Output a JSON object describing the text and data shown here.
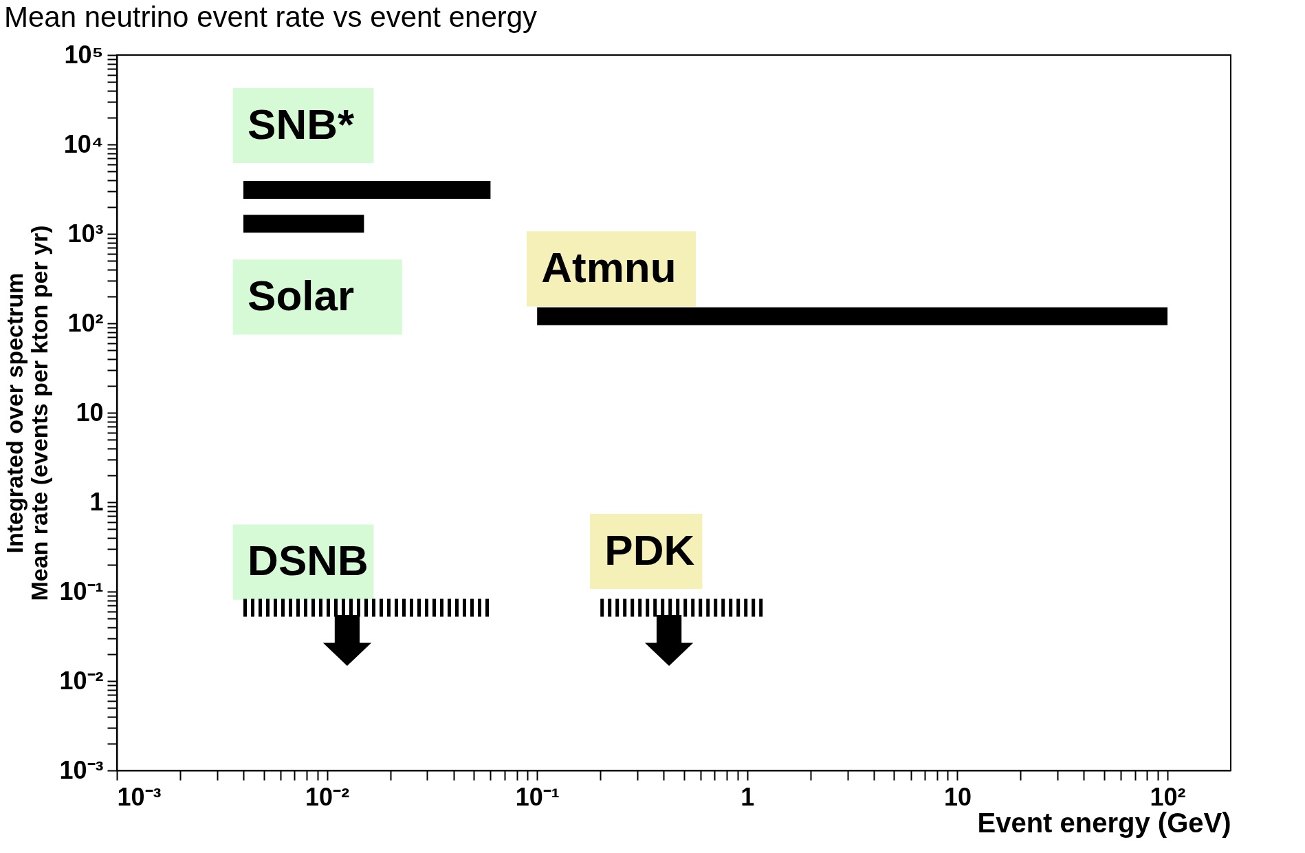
{
  "chart_data": {
    "type": "line",
    "title": "Mean neutrino event rate vs event energy",
    "xlabel": "Event energy (GeV)",
    "ylabel": "Integrated over spectrum\nMean rate (events per kton per yr)",
    "log": "xy",
    "grid": false,
    "marker": "none",
    "xlim": [
      0.001,
      200
    ],
    "ylim": [
      0.001,
      100000
    ],
    "xticks": [
      {
        "value": 0.001,
        "label": "10⁻³"
      },
      {
        "value": 0.002,
        "label": null
      },
      {
        "value": 0.003,
        "label": null
      },
      {
        "value": 0.004,
        "label": null
      },
      {
        "value": 0.005,
        "label": null
      },
      {
        "value": 0.006,
        "label": null
      },
      {
        "value": 0.007,
        "label": null
      },
      {
        "value": 0.008,
        "label": null
      },
      {
        "value": 0.009,
        "label": null
      },
      {
        "value": 0.01,
        "label": "10⁻²"
      },
      {
        "value": 0.02,
        "label": null
      },
      {
        "value": 0.03,
        "label": null
      },
      {
        "value": 0.04,
        "label": null
      },
      {
        "value": 0.05,
        "label": null
      },
      {
        "value": 0.06,
        "label": null
      },
      {
        "value": 0.07,
        "label": null
      },
      {
        "value": 0.08,
        "label": null
      },
      {
        "value": 0.09,
        "label": null
      },
      {
        "value": 0.1,
        "label": "10⁻¹"
      },
      {
        "value": 0.2,
        "label": null
      },
      {
        "value": 0.3,
        "label": null
      },
      {
        "value": 0.4,
        "label": null
      },
      {
        "value": 0.5,
        "label": null
      },
      {
        "value": 0.6,
        "label": null
      },
      {
        "value": 0.7,
        "label": null
      },
      {
        "value": 0.8,
        "label": null
      },
      {
        "value": 0.9,
        "label": null
      },
      1,
      {
        "value": 2,
        "label": null
      },
      {
        "value": 3,
        "label": null
      },
      {
        "value": 4,
        "label": null
      },
      {
        "value": 5,
        "label": null
      },
      {
        "value": 6,
        "label": null
      },
      {
        "value": 7,
        "label": null
      },
      {
        "value": 8,
        "label": null
      },
      {
        "value": 9,
        "label": null
      },
      10,
      {
        "value": 20,
        "label": null
      },
      {
        "value": 30,
        "label": null
      },
      {
        "value": 40,
        "label": null
      },
      {
        "value": 50,
        "label": null
      },
      {
        "value": 60,
        "label": null
      },
      {
        "value": 70,
        "label": null
      },
      {
        "value": 80,
        "label": null
      },
      {
        "value": 90,
        "label": null
      },
      {
        "value": 100,
        "label": "10²"
      }
    ],
    "yticks": [
      {
        "value": 0.001,
        "label": "10⁻³"
      },
      {
        "value": 0.002,
        "label": null
      },
      {
        "value": 0.003,
        "label": null
      },
      {
        "value": 0.004,
        "label": null
      },
      {
        "value": 0.005,
        "label": null
      },
      {
        "value": 0.006,
        "label": null
      },
      {
        "value": 0.007,
        "label": null
      },
      {
        "value": 0.008,
        "label": null
      },
      {
        "value": 0.009,
        "label": null
      },
      {
        "value": 0.01,
        "label": "10⁻²"
      },
      {
        "value": 0.02,
        "label": null
      },
      {
        "value": 0.03,
        "label": null
      },
      {
        "value": 0.04,
        "label": null
      },
      {
        "value": 0.05,
        "label": null
      },
      {
        "value": 0.06,
        "label": null
      },
      {
        "value": 0.07,
        "label": null
      },
      {
        "value": 0.08,
        "label": null
      },
      {
        "value": 0.09,
        "label": null
      },
      {
        "value": 0.1,
        "label": "10⁻¹"
      },
      {
        "value": 0.2,
        "label": null
      },
      {
        "value": 0.3,
        "label": null
      },
      {
        "value": 0.4,
        "label": null
      },
      {
        "value": 0.5,
        "label": null
      },
      {
        "value": 0.6,
        "label": null
      },
      {
        "value": 0.7,
        "label": null
      },
      {
        "value": 0.8,
        "label": null
      },
      {
        "value": 0.9,
        "label": null
      },
      1,
      {
        "value": 2,
        "label": null
      },
      {
        "value": 3,
        "label": null
      },
      {
        "value": 4,
        "label": null
      },
      {
        "value": 5,
        "label": null
      },
      {
        "value": 6,
        "label": null
      },
      {
        "value": 7,
        "label": null
      },
      {
        "value": 8,
        "label": null
      },
      {
        "value": 9,
        "label": null
      },
      10,
      {
        "value": 20,
        "label": null
      },
      {
        "value": 30,
        "label": null
      },
      {
        "value": 40,
        "label": null
      },
      {
        "value": 50,
        "label": null
      },
      {
        "value": 60,
        "label": null
      },
      {
        "value": 70,
        "label": null
      },
      {
        "value": 80,
        "label": null
      },
      {
        "value": 90,
        "label": null
      },
      {
        "value": 100,
        "label": "10²"
      },
      {
        "value": 200,
        "label": null
      },
      {
        "value": 300,
        "label": null
      },
      {
        "value": 400,
        "label": null
      },
      {
        "value": 500,
        "label": null
      },
      {
        "value": 600,
        "label": null
      },
      {
        "value": 700,
        "label": null
      },
      {
        "value": 800,
        "label": null
      },
      {
        "value": 900,
        "label": null
      },
      {
        "value": 1000,
        "label": "10³"
      },
      {
        "value": 2000,
        "label": null
      },
      {
        "value": 3000,
        "label": null
      },
      {
        "value": 4000,
        "label": null
      },
      {
        "value": 5000,
        "label": null
      },
      {
        "value": 6000,
        "label": null
      },
      {
        "value": 7000,
        "label": null
      },
      {
        "value": 8000,
        "label": null
      },
      {
        "value": 9000,
        "label": null
      },
      {
        "value": 10000,
        "label": "10⁴"
      },
      {
        "value": 20000,
        "label": null
      },
      {
        "value": 30000,
        "label": null
      },
      {
        "value": 40000,
        "label": null
      },
      {
        "value": 50000,
        "label": null
      },
      {
        "value": 60000,
        "label": null
      },
      {
        "value": 70000,
        "label": null
      },
      {
        "value": 80000,
        "label": null
      },
      {
        "value": 90000,
        "label": null
      },
      {
        "value": 100000,
        "label": "10⁵"
      }
    ],
    "series": [
      {
        "name": "SNB*",
        "color": "#000000",
        "type": "line",
        "line_style": "solid",
        "x": [
          0.004,
          0.06
        ],
        "values": [
          3100,
          3100
        ]
      },
      {
        "name": "Solar",
        "color": "#000000",
        "type": "line",
        "line_style": "solid",
        "x": [
          0.004,
          0.015
        ],
        "values": [
          1300,
          1300
        ]
      },
      {
        "name": "Atmnu",
        "color": "#000000",
        "type": "line",
        "line_style": "solid",
        "x": [
          0.1,
          100
        ],
        "values": [
          120,
          120
        ]
      },
      {
        "name": "DSNB",
        "color": "#000000",
        "type": "line",
        "line_style": "dashed",
        "x": [
          0.004,
          0.06
        ],
        "values": [
          0.066,
          0.066
        ]
      },
      {
        "name": "PDK",
        "color": "#000000",
        "type": "line",
        "line_style": "dashed",
        "x": [
          0.2,
          1.2
        ],
        "values": [
          0.066,
          0.066
        ]
      }
    ]
  }
}
